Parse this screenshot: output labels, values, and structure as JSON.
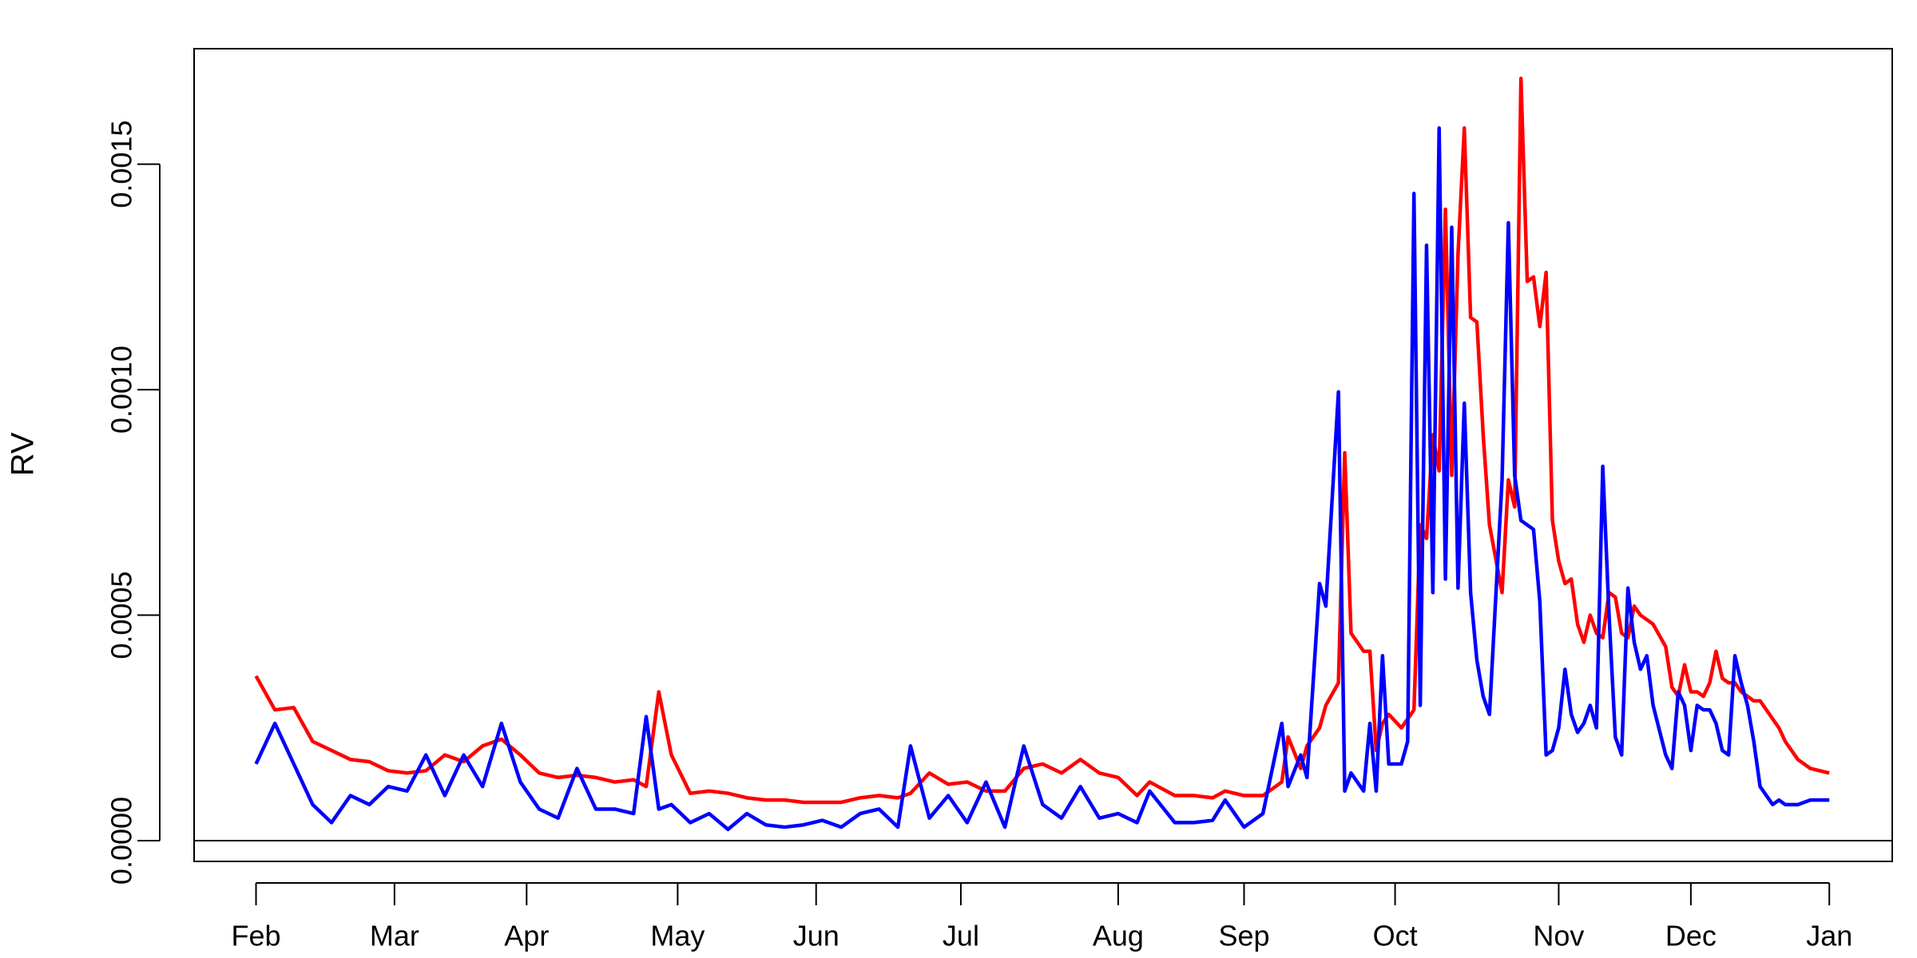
{
  "chart_data": {
    "type": "line",
    "y_label": "RV",
    "x": [
      0,
      3,
      6,
      9,
      12,
      15,
      18,
      21,
      24,
      27,
      30,
      33,
      36,
      39,
      42,
      45,
      48,
      51,
      54,
      57,
      60,
      62,
      64,
      66,
      69,
      72,
      75,
      78,
      81,
      84,
      87,
      90,
      93,
      96,
      99,
      102,
      104,
      107,
      110,
      113,
      116,
      119,
      122,
      125,
      128,
      131,
      134,
      137,
      140,
      142,
      146,
      149,
      152,
      154,
      157,
      160,
      163,
      164,
      166,
      167,
      169,
      170,
      172,
      173,
      174,
      176,
      177,
      178,
      179,
      180,
      182,
      183,
      184,
      185,
      186,
      187,
      188,
      189,
      190,
      191,
      192,
      193,
      194,
      195,
      196,
      198,
      199,
      200,
      201,
      202,
      203,
      204,
      205,
      206,
      207,
      208,
      209,
      210,
      211,
      212,
      213,
      214,
      215,
      216,
      217,
      218,
      219,
      220,
      221,
      222,
      224,
      225,
      226,
      227,
      228,
      229,
      230,
      231,
      232,
      233,
      234,
      235,
      236,
      237,
      238,
      239,
      240,
      241,
      242,
      243,
      245,
      247,
      250
    ],
    "series": [
      {
        "color": "#ff0000",
        "values": [
          0.000365,
          0.00029,
          0.000295,
          0.00022,
          0.0002,
          0.00018,
          0.000175,
          0.000155,
          0.00015,
          0.000155,
          0.00019,
          0.000175,
          0.00021,
          0.000225,
          0.00019,
          0.00015,
          0.00014,
          0.000145,
          0.00014,
          0.00013,
          0.000135,
          0.00012,
          0.00033,
          0.00019,
          0.000105,
          0.00011,
          0.000105,
          9.5e-05,
          9e-05,
          9e-05,
          8.5e-05,
          8.5e-05,
          8.5e-05,
          9.5e-05,
          0.0001,
          9.5e-05,
          0.000105,
          0.00015,
          0.000125,
          0.00013,
          0.00011,
          0.00011,
          0.00016,
          0.00017,
          0.00015,
          0.00018,
          0.00015,
          0.00014,
          0.0001,
          0.00013,
          0.0001,
          0.0001,
          9.5e-05,
          0.00011,
          0.0001,
          0.0001,
          0.00013,
          0.00023,
          0.00016,
          0.00021,
          0.00025,
          0.0003,
          0.00035,
          0.00086,
          0.00046,
          0.00042,
          0.00042,
          0.0002,
          0.00026,
          0.00028,
          0.00025,
          0.00027,
          0.00029,
          0.0007,
          0.00067,
          0.0009,
          0.00082,
          0.0014,
          0.00081,
          0.0013,
          0.00158,
          0.00116,
          0.00115,
          0.0009,
          0.0007,
          0.00055,
          0.0008,
          0.00074,
          0.00169,
          0.00124,
          0.00125,
          0.00114,
          0.00126,
          0.00071,
          0.00062,
          0.00057,
          0.00058,
          0.00048,
          0.00044,
          0.0005,
          0.00046,
          0.00045,
          0.00055,
          0.00054,
          0.00046,
          0.00045,
          0.00052,
          0.0005,
          0.00049,
          0.00048,
          0.00043,
          0.00034,
          0.00032,
          0.00039,
          0.00033,
          0.00033,
          0.00032,
          0.00035,
          0.00042,
          0.00036,
          0.00035,
          0.00035,
          0.00033,
          0.00032,
          0.00031,
          0.00031,
          0.00029,
          0.00027,
          0.00025,
          0.00022,
          0.00018,
          0.00016,
          0.00015
        ]
      },
      {
        "color": "#0000ff",
        "values": [
          0.00017,
          0.00026,
          0.00017,
          8e-05,
          4e-05,
          0.0001,
          8e-05,
          0.00012,
          0.00011,
          0.00019,
          0.0001,
          0.00019,
          0.00012,
          0.00026,
          0.00013,
          7e-05,
          5e-05,
          0.00016,
          7e-05,
          7e-05,
          6e-05,
          0.000275,
          7e-05,
          8e-05,
          4e-05,
          6e-05,
          2.5e-05,
          6e-05,
          3.5e-05,
          3e-05,
          3.5e-05,
          4.5e-05,
          3e-05,
          6e-05,
          7e-05,
          3e-05,
          0.00021,
          5e-05,
          0.0001,
          4e-05,
          0.00013,
          3e-05,
          0.00021,
          8e-05,
          5e-05,
          0.00012,
          5e-05,
          6e-05,
          4e-05,
          0.00011,
          4e-05,
          4e-05,
          4.5e-05,
          9e-05,
          3e-05,
          6e-05,
          0.00026,
          0.00012,
          0.00019,
          0.00014,
          0.00057,
          0.00052,
          0.000995,
          0.00011,
          0.00015,
          0.00011,
          0.00026,
          0.00011,
          0.00041,
          0.00017,
          0.00017,
          0.00022,
          0.001435,
          0.0003,
          0.00132,
          0.00055,
          0.00158,
          0.00058,
          0.00136,
          0.00056,
          0.00097,
          0.00055,
          0.0004,
          0.00032,
          0.00028,
          0.0008,
          0.00137,
          0.00081,
          0.00071,
          0.0007,
          0.00069,
          0.00053,
          0.00019,
          0.0002,
          0.00025,
          0.00038,
          0.00028,
          0.00024,
          0.00026,
          0.0003,
          0.00025,
          0.00083,
          0.0005,
          0.00023,
          0.00019,
          0.00056,
          0.00044,
          0.00038,
          0.00041,
          0.0003,
          0.00019,
          0.00016,
          0.00033,
          0.0003,
          0.0002,
          0.0003,
          0.00029,
          0.00029,
          0.00026,
          0.0002,
          0.00019,
          0.00041,
          0.00035,
          0.0003,
          0.00022,
          0.00012,
          0.0001,
          8e-05,
          9e-05,
          8e-05,
          8e-05,
          9e-05,
          9e-05
        ]
      }
    ],
    "xlim": [
      -9.84,
      260
    ],
    "xticks": [
      {
        "value": 0,
        "label": "Feb"
      },
      {
        "value": 22,
        "label": "Mar"
      },
      {
        "value": 43,
        "label": "Apr"
      },
      {
        "value": 67,
        "label": "May"
      },
      {
        "value": 89,
        "label": "Jun"
      },
      {
        "value": 112,
        "label": "Jul"
      },
      {
        "value": 137,
        "label": "Aug"
      },
      {
        "value": 157,
        "label": "Sep"
      },
      {
        "value": 181,
        "label": "Oct"
      },
      {
        "value": 207,
        "label": "Nov"
      },
      {
        "value": 228,
        "label": "Dec"
      },
      {
        "value": 250,
        "label": "Jan"
      }
    ],
    "ylim": [
      -4.6e-05,
      0.001756
    ],
    "yticks": [
      {
        "value": 0,
        "label": "0.0000"
      },
      {
        "value": 0.0005,
        "label": "0.0005"
      },
      {
        "value": 0.001,
        "label": "0.0010"
      },
      {
        "value": 0.0015,
        "label": "0.0015"
      }
    ],
    "hline": 0
  }
}
